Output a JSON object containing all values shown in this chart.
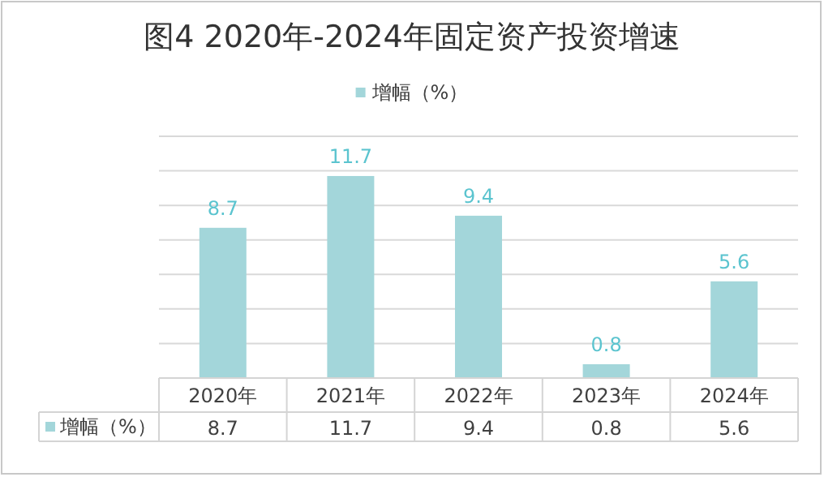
{
  "chart_data": {
    "type": "bar",
    "title": "图4  2020年-2024年固定资产投资增速",
    "categories": [
      "2020年",
      "2021年",
      "2022年",
      "2023年",
      "2024年"
    ],
    "series": [
      {
        "name": "增幅（%）",
        "color": "#a3d6da",
        "values": [
          8.7,
          11.7,
          9.4,
          0.8,
          5.6
        ],
        "value_labels": [
          "8.7",
          "11.7",
          "9.4",
          "0.8",
          "5.6"
        ]
      }
    ],
    "ylim": [
      0,
      14
    ],
    "yticks": [
      {
        "value": 0,
        "label": null
      },
      {
        "value": 2,
        "label": null
      },
      {
        "value": 4,
        "label": null
      },
      {
        "value": 6,
        "label": null
      },
      {
        "value": 8,
        "label": null
      },
      {
        "value": 10,
        "label": null
      },
      {
        "value": 12,
        "label": null
      },
      {
        "value": 14,
        "label": null
      }
    ],
    "annotations": [
      "增幅（%）",
      "8.7",
      "11.7",
      "9.4",
      "0.8",
      "5.6"
    ],
    "grid": "y",
    "legend": "top",
    "data_labels": true
  }
}
